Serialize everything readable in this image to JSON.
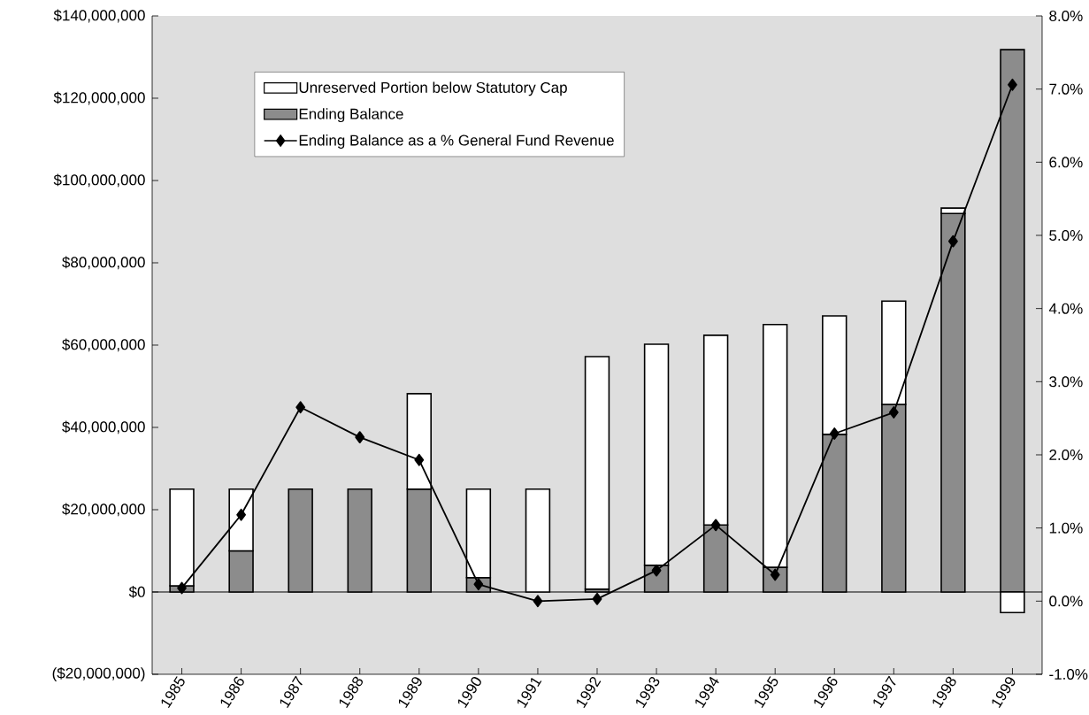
{
  "chart_data": {
    "type": "bar",
    "stacked": true,
    "categories": [
      "1985",
      "1986",
      "1987",
      "1988",
      "1989",
      "1990",
      "1991",
      "1992",
      "1993",
      "1994",
      "1995",
      "1996",
      "1997",
      "1998",
      "1999"
    ],
    "series": [
      {
        "name": "Ending Balance",
        "color": "#8c8c8c",
        "values": [
          1500000,
          10000000,
          25000000,
          25000000,
          25000000,
          3500000,
          0,
          700000,
          6500000,
          16300000,
          6000000,
          38300000,
          45600000,
          92000000,
          131800000
        ]
      },
      {
        "name": "Unreserved Portion below Statutory Cap",
        "color": "#ffffff",
        "values": [
          23500000,
          15000000,
          0,
          0,
          23200000,
          21500000,
          25000000,
          56500000,
          53700000,
          46100000,
          59000000,
          28800000,
          25100000,
          1300000,
          -5000000
        ]
      },
      {
        "name": "Ending Balance as a % General Fund Revenue",
        "type": "line",
        "axis": "y2",
        "color": "#000000",
        "marker": "diamond",
        "values": [
          0.18,
          1.18,
          2.65,
          2.24,
          1.93,
          0.23,
          0.0,
          0.03,
          0.42,
          1.04,
          0.36,
          2.29,
          2.58,
          4.92,
          7.06
        ]
      }
    ],
    "ylim": [
      -20000000,
      140000000
    ],
    "yticks": [
      {
        "value": -20000000,
        "label": "($20,000,000)"
      },
      {
        "value": 0,
        "label": "$0"
      },
      {
        "value": 20000000,
        "label": "$20,000,000"
      },
      {
        "value": 40000000,
        "label": "$40,000,000"
      },
      {
        "value": 60000000,
        "label": "$60,000,000"
      },
      {
        "value": 80000000,
        "label": "$80,000,000"
      },
      {
        "value": 100000000,
        "label": "$100,000,000"
      },
      {
        "value": 120000000,
        "label": "$120,000,000"
      },
      {
        "value": 140000000,
        "label": "$140,000,000"
      }
    ],
    "y2lim": [
      -1,
      8
    ],
    "y2ticks": [
      {
        "value": -1,
        "label": "-1.0%"
      },
      {
        "value": 0,
        "label": "0.0%"
      },
      {
        "value": 1,
        "label": "1.0%"
      },
      {
        "value": 2,
        "label": "2.0%"
      },
      {
        "value": 3,
        "label": "3.0%"
      },
      {
        "value": 4,
        "label": "4.0%"
      },
      {
        "value": 5,
        "label": "5.0%"
      },
      {
        "value": 6,
        "label": "6.0%"
      },
      {
        "value": 7,
        "label": "7.0%"
      },
      {
        "value": 8,
        "label": "8.0%"
      }
    ],
    "ref_lines": [
      {
        "axis": "y",
        "value": 0,
        "color": "#000000"
      }
    ],
    "legend": "top left",
    "grid": false
  }
}
